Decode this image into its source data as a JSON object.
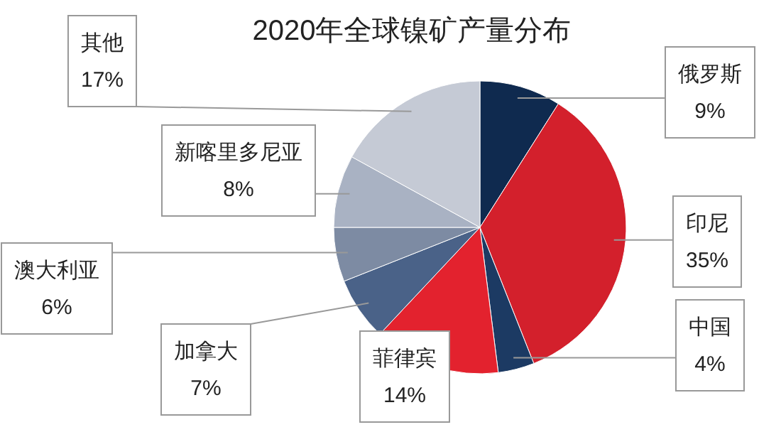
{
  "chart_data": {
    "type": "pie",
    "title": "2020年全球镍矿产量分布",
    "categories": [
      "俄罗斯",
      "印尼",
      "中国",
      "菲律宾",
      "加拿大",
      "澳大利亚",
      "新喀里多尼亚",
      "其他"
    ],
    "values": [
      9,
      35,
      4,
      14,
      7,
      6,
      8,
      17
    ],
    "value_labels": [
      "9%",
      "35%",
      "4%",
      "14%",
      "7%",
      "6%",
      "8%",
      "17%"
    ],
    "colors": [
      "#0f2a4f",
      "#d3202c",
      "#1c3a63",
      "#e3222e",
      "#4a6288",
      "#7d8ba3",
      "#a9b2c3",
      "#c5cad5"
    ]
  }
}
